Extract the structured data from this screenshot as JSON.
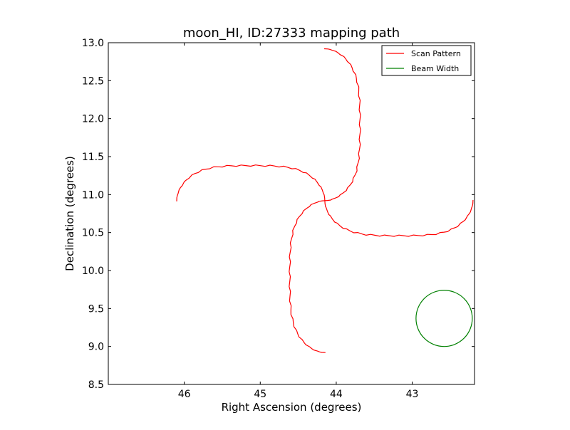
{
  "chart_data": {
    "type": "line",
    "title": "moon_HI, ID:27333 mapping path",
    "xlabel": "Right Ascension (degrees)",
    "ylabel": "Declination (degrees)",
    "xlim": [
      47.0,
      42.18
    ],
    "ylim": [
      8.5,
      13.0
    ],
    "x_inverted": true,
    "xticks": [
      46,
      45,
      44,
      43
    ],
    "xtick_labels": [
      "46",
      "45",
      "44",
      "43"
    ],
    "yticks": [
      8.5,
      9.0,
      9.5,
      10.0,
      10.5,
      11.0,
      11.5,
      12.0,
      12.5,
      13.0
    ],
    "ytick_labels": [
      "8.5",
      "9.0",
      "9.5",
      "10.0",
      "10.5",
      "11.0",
      "11.5",
      "12.0",
      "12.5",
      "13.0"
    ],
    "grid": false,
    "legend_position": "top-right",
    "series": [
      {
        "name": "Scan Pattern",
        "color": "#ff0000",
        "kind": "four-petal rose (scan path)",
        "center": [
          44.15,
          10.92
        ],
        "horizontal_petal_extent": 1.95,
        "vertical_petal_extent": 2.0,
        "petal_half_width": 0.55,
        "x": [
          46.2,
          46.2,
          45.9,
          45.5,
          45.2,
          44.85,
          44.6,
          44.4,
          44.15,
          43.9,
          43.6,
          43.3,
          43.0,
          42.6,
          42.35,
          42.18,
          42.35,
          42.6,
          43.0,
          43.3,
          43.6,
          43.9,
          44.15,
          44.4,
          44.6,
          44.85,
          45.2,
          45.5,
          45.9,
          46.2
        ],
        "y": [
          10.82,
          10.93,
          11.35,
          11.5,
          11.48,
          11.35,
          11.15,
          11.0,
          10.92,
          11.15,
          11.4,
          11.49,
          11.49,
          11.38,
          11.15,
          10.92,
          10.6,
          10.4,
          10.35,
          10.45,
          10.55,
          10.73,
          10.92,
          10.7,
          10.5,
          10.45,
          10.4,
          10.4,
          10.55,
          10.82
        ]
      },
      {
        "name": "Beam Width",
        "color": "#008000",
        "kind": "circle",
        "center": [
          42.58,
          9.37
        ],
        "radius_dec": 0.37
      }
    ]
  }
}
